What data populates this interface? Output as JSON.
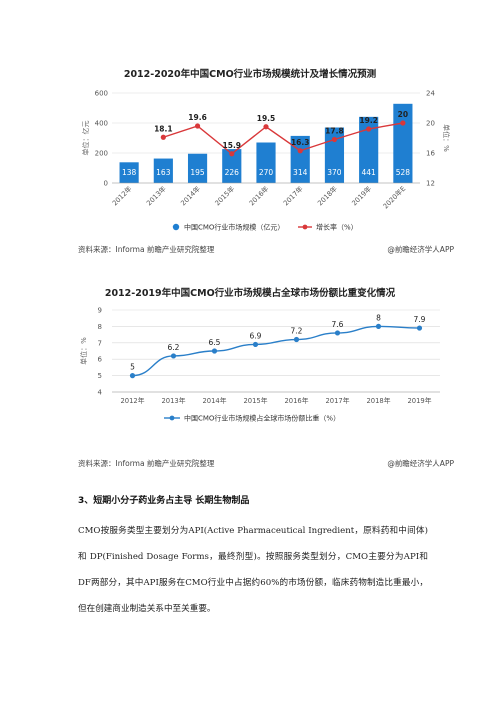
{
  "chart1": {
    "title": "2012-2020年中国CMO行业市场规模统计及增长情况预测",
    "source": "资料来源：Informa 前瞻产业研究院整理",
    "brand": "@前瞻经济学人APP"
  },
  "chart2": {
    "title": "2012-2019年中国CMO行业市场规模占全球市场份额比重变化情况",
    "source": "资料来源：Informa 前瞻产业研究院整理",
    "brand": "@前瞻经济学人APP"
  },
  "section": {
    "heading": "3、短期小分子药业务占主导 长期生物制品",
    "paragraph": "CMO按服务类型主要划分为API(Active Pharmaceutical Ingredient，原料药和中间体)和 DP(Finished Dosage Forms，最终剂型)。按照服务类型划分，CMO主要分为API和DF两部分，其中API服务在CMO行业中占据约60%的市场份额，临床药物制造比重最小，但在创建商业制造关系中至关重要。"
  },
  "chart_data": [
    {
      "type": "bar",
      "title": "2012-2020年中国CMO行业市场规模统计及增长情况预测",
      "categories": [
        "2012年",
        "2013年",
        "2014年",
        "2015年",
        "2016年",
        "2017年",
        "2018年",
        "2019年",
        "2020年E"
      ],
      "ylabel": "单位：亿元",
      "y2label": "单位：%",
      "ylim": [
        0,
        600
      ],
      "yticks": [
        0,
        200,
        400,
        600
      ],
      "y2lim": [
        12,
        24
      ],
      "y2ticks": [
        12,
        16,
        20,
        24
      ],
      "series": [
        {
          "name": "中国CMO行业市场规模（亿元）",
          "type": "bar",
          "color": "#1f7fd1",
          "values": [
            138,
            163,
            195,
            226,
            270,
            314,
            370,
            441,
            528
          ]
        },
        {
          "name": "增长率（%）",
          "type": "line",
          "color": "#d9383a",
          "values": [
            null,
            18.1,
            19.6,
            15.9,
            19.5,
            16.3,
            17.8,
            19.2,
            20.0
          ],
          "labels": [
            "",
            "18.1",
            "19.6",
            "15.9",
            "19.5",
            "16.3",
            "17.8",
            "19.2",
            "20"
          ]
        }
      ],
      "bar_labels": [
        "138",
        "163",
        "195",
        "226",
        "270",
        "314",
        "370",
        "441",
        "528"
      ],
      "legend": "bottom",
      "grid": true
    },
    {
      "type": "line",
      "title": "2012-2019年中国CMO行业市场规模占全球市场份额比重变化情况",
      "categories": [
        "2012年",
        "2013年",
        "2014年",
        "2015年",
        "2016年",
        "2017年",
        "2018年",
        "2019年"
      ],
      "ylabel": "单位：%",
      "ylim": [
        4,
        9
      ],
      "yticks": [
        4,
        5,
        6,
        7,
        8,
        9
      ],
      "series": [
        {
          "name": "中国CMO行业市场规模占全球市场份额比重（%）",
          "color": "#2a7fc9",
          "values": [
            5,
            6.2,
            6.5,
            6.9,
            7.2,
            7.6,
            8,
            7.9
          ],
          "labels": [
            "5",
            "6.2",
            "6.5",
            "6.9",
            "7.2",
            "7.6",
            "8",
            "7.9"
          ]
        }
      ],
      "legend": "bottom",
      "grid": true
    }
  ]
}
